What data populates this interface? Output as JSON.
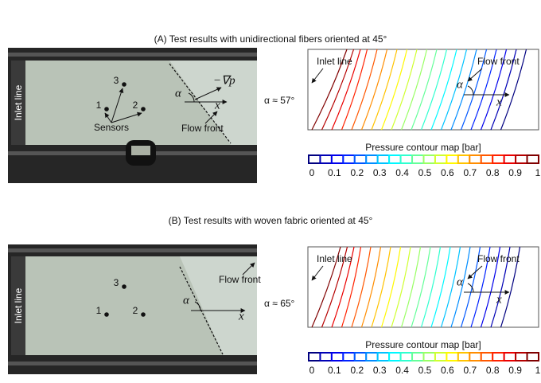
{
  "panels": [
    {
      "title": "(A) Test results with unidirectional fibers oriented at 45°",
      "photo": {
        "inlet_label": "Inlet line",
        "sensor_labels": [
          "1",
          "2",
          "3"
        ],
        "sensors_label": "Sensors",
        "alpha": "α",
        "gradient": "−∇p",
        "x": "x",
        "flow_front": "Flow front"
      },
      "angle": "α ≈ 57°",
      "contour": {
        "inlet_label": "Inlet line",
        "flow_front": "Flow front",
        "alpha": "α",
        "x": "x",
        "colorbar_label": "Pressure contour map [bar]",
        "colorbar_ticks": [
          0,
          0.1,
          0.2,
          0.3,
          0.4,
          0.5,
          0.6,
          0.7,
          0.8,
          0.9,
          1
        ]
      }
    },
    {
      "title": "(B) Test results with woven fabric oriented at 45°",
      "photo": {
        "inlet_label": "Inlet line",
        "sensor_labels": [
          "1",
          "2",
          "3"
        ],
        "alpha": "α",
        "x": "x",
        "flow_front": "Flow front"
      },
      "angle": "α ≈ 65°",
      "contour": {
        "inlet_label": "Inlet line",
        "flow_front": "Flow front",
        "alpha": "α",
        "x": "x",
        "colorbar_label": "Pressure contour map [bar]",
        "colorbar_ticks": [
          0,
          0.1,
          0.2,
          0.3,
          0.4,
          0.5,
          0.6,
          0.7,
          0.8,
          0.9,
          1
        ]
      }
    }
  ]
}
